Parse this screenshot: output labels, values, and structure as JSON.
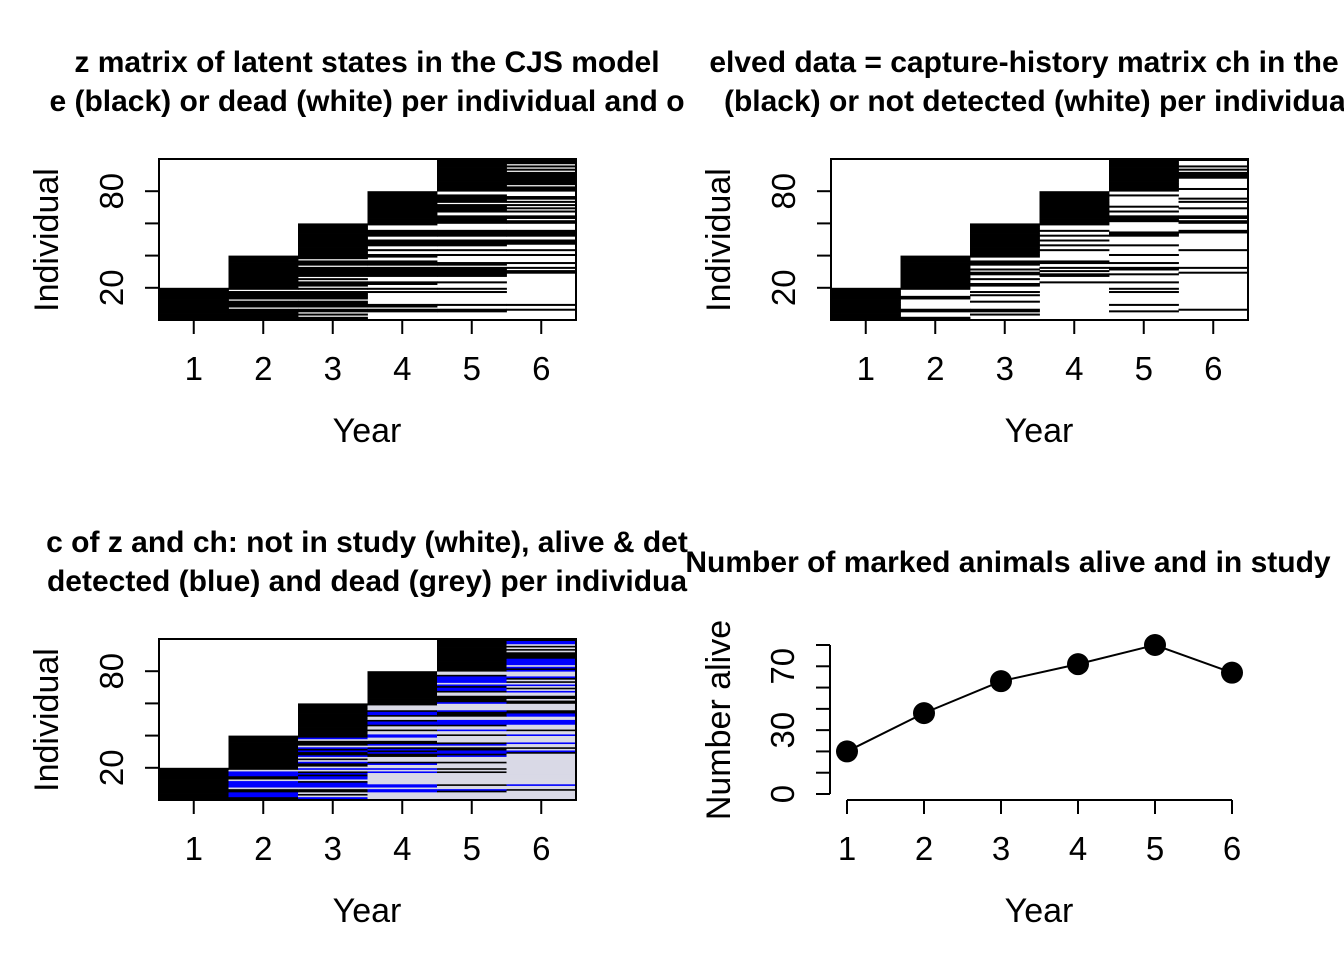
{
  "chart_data": [
    {
      "type": "heatmap",
      "title_lines": [
        "z matrix of latent states in the CJS model",
        "e (black) or dead (white) per individual and o"
      ],
      "xlabel": "Year",
      "ylabel": "Individual",
      "x": [
        1,
        2,
        3,
        4,
        5,
        6
      ],
      "xticks": [
        "1",
        "2",
        "3",
        "4",
        "5",
        "6"
      ],
      "ylim": [
        0,
        100
      ],
      "yticks": [
        20,
        40,
        60,
        80
      ],
      "ytick_labels": [
        "20",
        "",
        "",
        "80"
      ],
      "legend": {
        "alive": "black",
        "dead": "white"
      },
      "colors": {
        "alive": "#000000",
        "dead": "#ffffff"
      },
      "cohorts": [
        {
          "first_year": 1,
          "individuals": [
            1,
            20
          ]
        },
        {
          "first_year": 2,
          "individuals": [
            21,
            40
          ]
        },
        {
          "first_year": 3,
          "individuals": [
            41,
            60
          ]
        },
        {
          "first_year": 4,
          "individuals": [
            61,
            80
          ]
        },
        {
          "first_year": 5,
          "individuals": [
            81,
            100
          ]
        }
      ]
    },
    {
      "type": "heatmap",
      "title_lines": [
        "elved data = capture-history matrix ch in the C",
        "(black) or not detected (white) per individual"
      ],
      "xlabel": "Year",
      "ylabel": "Individual",
      "x": [
        1,
        2,
        3,
        4,
        5,
        6
      ],
      "xticks": [
        "1",
        "2",
        "3",
        "4",
        "5",
        "6"
      ],
      "ylim": [
        0,
        100
      ],
      "yticks": [
        20,
        40,
        60,
        80
      ],
      "ytick_labels": [
        "20",
        "",
        "",
        "80"
      ],
      "legend": {
        "detected": "black",
        "not detected": "white"
      },
      "colors": {
        "detected": "#000000",
        "not_detected": "#ffffff"
      }
    },
    {
      "type": "heatmap",
      "title_lines": [
        "c of z and ch: not in study (white), alive & det",
        "detected (blue) and dead (grey) per individua"
      ],
      "xlabel": "Year",
      "ylabel": "Individual",
      "x": [
        1,
        2,
        3,
        4,
        5,
        6
      ],
      "xticks": [
        "1",
        "2",
        "3",
        "4",
        "5",
        "6"
      ],
      "ylim": [
        0,
        100
      ],
      "yticks": [
        20,
        40,
        60,
        80
      ],
      "ytick_labels": [
        "20",
        "",
        "",
        "80"
      ],
      "legend": {
        "not in study": "white",
        "alive & detected": "black",
        "alive & not detected": "blue",
        "dead": "grey"
      },
      "colors": {
        "not_in_study": "#ffffff",
        "alive_detected": "#000000",
        "alive_not_detected": "#0000ff",
        "dead": "#d9d9e6"
      }
    },
    {
      "type": "line",
      "title": "Number of marked animals alive and in study",
      "xlabel": "Year",
      "ylabel": "Number alive",
      "x": [
        1,
        2,
        3,
        4,
        5,
        6
      ],
      "xticks": [
        "1",
        "2",
        "3",
        "4",
        "5",
        "6"
      ],
      "y": [
        20,
        38,
        53,
        61,
        70,
        57
      ],
      "ylim": [
        0,
        70
      ],
      "yticks": [
        0,
        10,
        20,
        30,
        40,
        50,
        60,
        70
      ],
      "ytick_labels": [
        "0",
        "",
        "",
        "30",
        "",
        "",
        "70"
      ],
      "series": [
        {
          "values": [
            20,
            38,
            53,
            61,
            70,
            57
          ]
        }
      ],
      "marker": "filled-circle",
      "color": "#000000"
    }
  ]
}
